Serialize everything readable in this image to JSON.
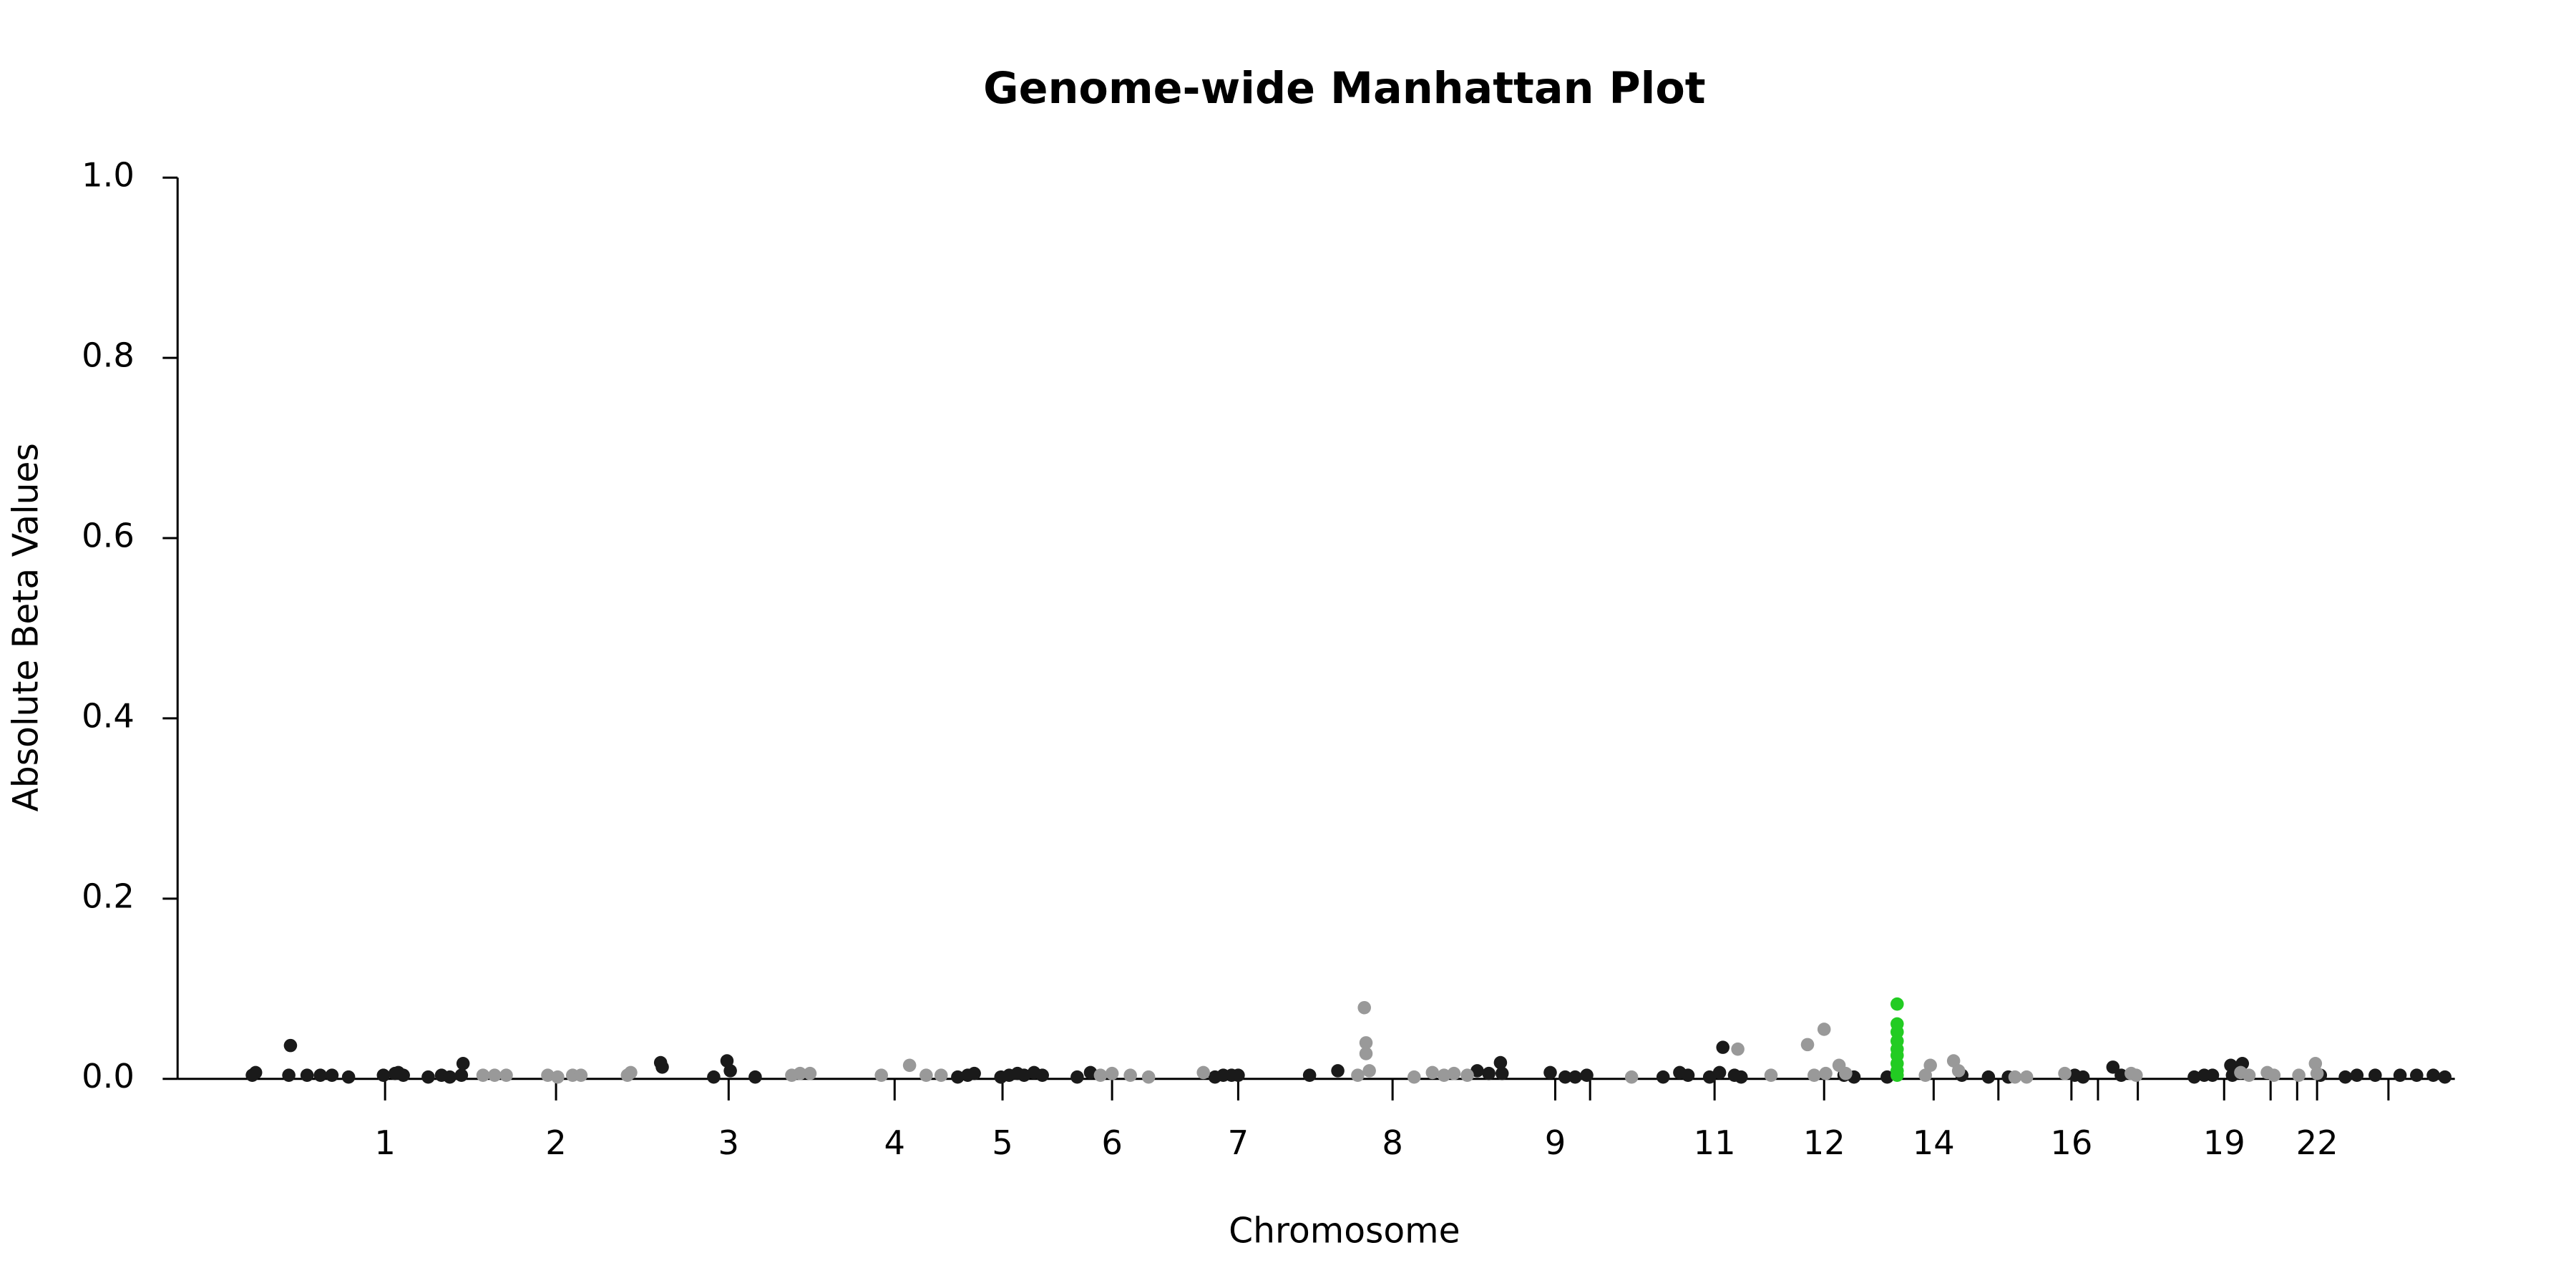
{
  "chart_data": {
    "type": "scatter",
    "title": "Genome-wide Manhattan Plot",
    "x_label": "Chromosome",
    "y_label": "Absolute Beta Values",
    "xlim": [
      0,
      1372
    ],
    "ylim": [
      0,
      1.0
    ],
    "yticks": [
      {
        "value": 0,
        "label": "0.0"
      },
      0.2,
      0.4,
      0.6,
      0.8,
      {
        "value": 1,
        "label": "1.0"
      }
    ],
    "xticks": [
      {
        "value": 125,
        "label": "1"
      },
      {
        "value": 228,
        "label": "2"
      },
      {
        "value": 332,
        "label": "3"
      },
      {
        "value": 432,
        "label": "4"
      },
      {
        "value": 497,
        "label": "5"
      },
      {
        "value": 563,
        "label": "6"
      },
      {
        "value": 639,
        "label": "7"
      },
      {
        "value": 732,
        "label": "8"
      },
      {
        "value": 830,
        "label": "9"
      },
      {
        "value": 851,
        "label": null
      },
      {
        "value": 926,
        "label": "11"
      },
      {
        "value": 992,
        "label": "12"
      },
      {
        "value": 1058,
        "label": "14"
      },
      {
        "value": 1097,
        "label": null
      },
      {
        "value": 1141,
        "label": "16"
      },
      {
        "value": 1157,
        "label": null
      },
      {
        "value": 1181,
        "label": null
      },
      {
        "value": 1233,
        "label": "19"
      },
      {
        "value": 1261,
        "label": null
      },
      {
        "value": 1277,
        "label": null
      },
      {
        "value": 1289,
        "label": "22"
      },
      {
        "value": 1332,
        "label": null
      }
    ],
    "grid": false,
    "series": [
      {
        "color": "#1a1a1a",
        "x": [
          45,
          47,
          68,
          67,
          78,
          86,
          93,
          103,
          124,
          131,
          133,
          136,
          151,
          159,
          164,
          172,
          171,
          291,
          292,
          323,
          331,
          333,
          348,
          470,
          476,
          480,
          496,
          501,
          506,
          510,
          516,
          521,
          542,
          550,
          625,
          630,
          635,
          639,
          682,
          699,
          783,
          790,
          797,
          798,
          827,
          836,
          842,
          849,
          895,
          905,
          910,
          923,
          929,
          931,
          938,
          942,
          1004,
          1010,
          1030,
          1075,
          1091,
          1103,
          1143,
          1148,
          1166,
          1171,
          1215,
          1221,
          1226,
          1237,
          1244,
          1238,
          1291,
          1306,
          1313,
          1324,
          1339,
          1349,
          1359,
          1366
        ],
        "values": [
          0.004,
          0.007,
          0.037,
          0.004,
          0.004,
          0.004,
          0.004,
          0.002,
          0.004,
          0.006,
          0.007,
          0.004,
          0.002,
          0.004,
          0.002,
          0.017,
          0.004,
          0.018,
          0.013,
          0.002,
          0.02,
          0.009,
          0.002,
          0.002,
          0.004,
          0.006,
          0.002,
          0.004,
          0.006,
          0.004,
          0.007,
          0.004,
          0.002,
          0.007,
          0.002,
          0.004,
          0.004,
          0.004,
          0.004,
          0.009,
          0.009,
          0.006,
          0.018,
          0.006,
          0.007,
          0.002,
          0.002,
          0.004,
          0.002,
          0.007,
          0.004,
          0.002,
          0.007,
          0.035,
          0.004,
          0.002,
          0.004,
          0.002,
          0.002,
          0.004,
          0.002,
          0.002,
          0.004,
          0.002,
          0.013,
          0.004,
          0.002,
          0.004,
          0.004,
          0.015,
          0.017,
          0.004,
          0.004,
          0.002,
          0.004,
          0.004,
          0.004,
          0.004,
          0.004,
          0.002
        ]
      },
      {
        "color": "#999999",
        "x": [
          184,
          191,
          198,
          223,
          229,
          238,
          243,
          271,
          273,
          370,
          375,
          381,
          424,
          441,
          451,
          460,
          556,
          563,
          574,
          585,
          618,
          711,
          715,
          716,
          716,
          718,
          745,
          756,
          763,
          769,
          777,
          876,
          940,
          960,
          982,
          986,
          992,
          993,
          1001,
          1005,
          1053,
          1056,
          1070,
          1073,
          1107,
          1114,
          1137,
          1177,
          1180,
          1243,
          1248,
          1259,
          1263,
          1278,
          1288,
          1289
        ],
        "values": [
          0.004,
          0.004,
          0.004,
          0.004,
          0.002,
          0.004,
          0.004,
          0.004,
          0.007,
          0.004,
          0.006,
          0.006,
          0.004,
          0.015,
          0.004,
          0.004,
          0.004,
          0.006,
          0.004,
          0.002,
          0.007,
          0.004,
          0.079,
          0.04,
          0.028,
          0.009,
          0.002,
          0.007,
          0.004,
          0.006,
          0.004,
          0.002,
          0.033,
          0.004,
          0.038,
          0.004,
          0.055,
          0.006,
          0.015,
          0.006,
          0.004,
          0.015,
          0.02,
          0.009,
          0.002,
          0.002,
          0.006,
          0.006,
          0.004,
          0.007,
          0.004,
          0.007,
          0.004,
          0.004,
          0.017,
          0.006
        ]
      },
      {
        "color": "#22cc22",
        "x": [
          1036,
          1036,
          1036,
          1036,
          1036,
          1036,
          1036,
          1036,
          1036
        ],
        "values": [
          0.083,
          0.061,
          0.052,
          0.042,
          0.033,
          0.026,
          0.017,
          0.009,
          0.004
        ]
      }
    ]
  }
}
